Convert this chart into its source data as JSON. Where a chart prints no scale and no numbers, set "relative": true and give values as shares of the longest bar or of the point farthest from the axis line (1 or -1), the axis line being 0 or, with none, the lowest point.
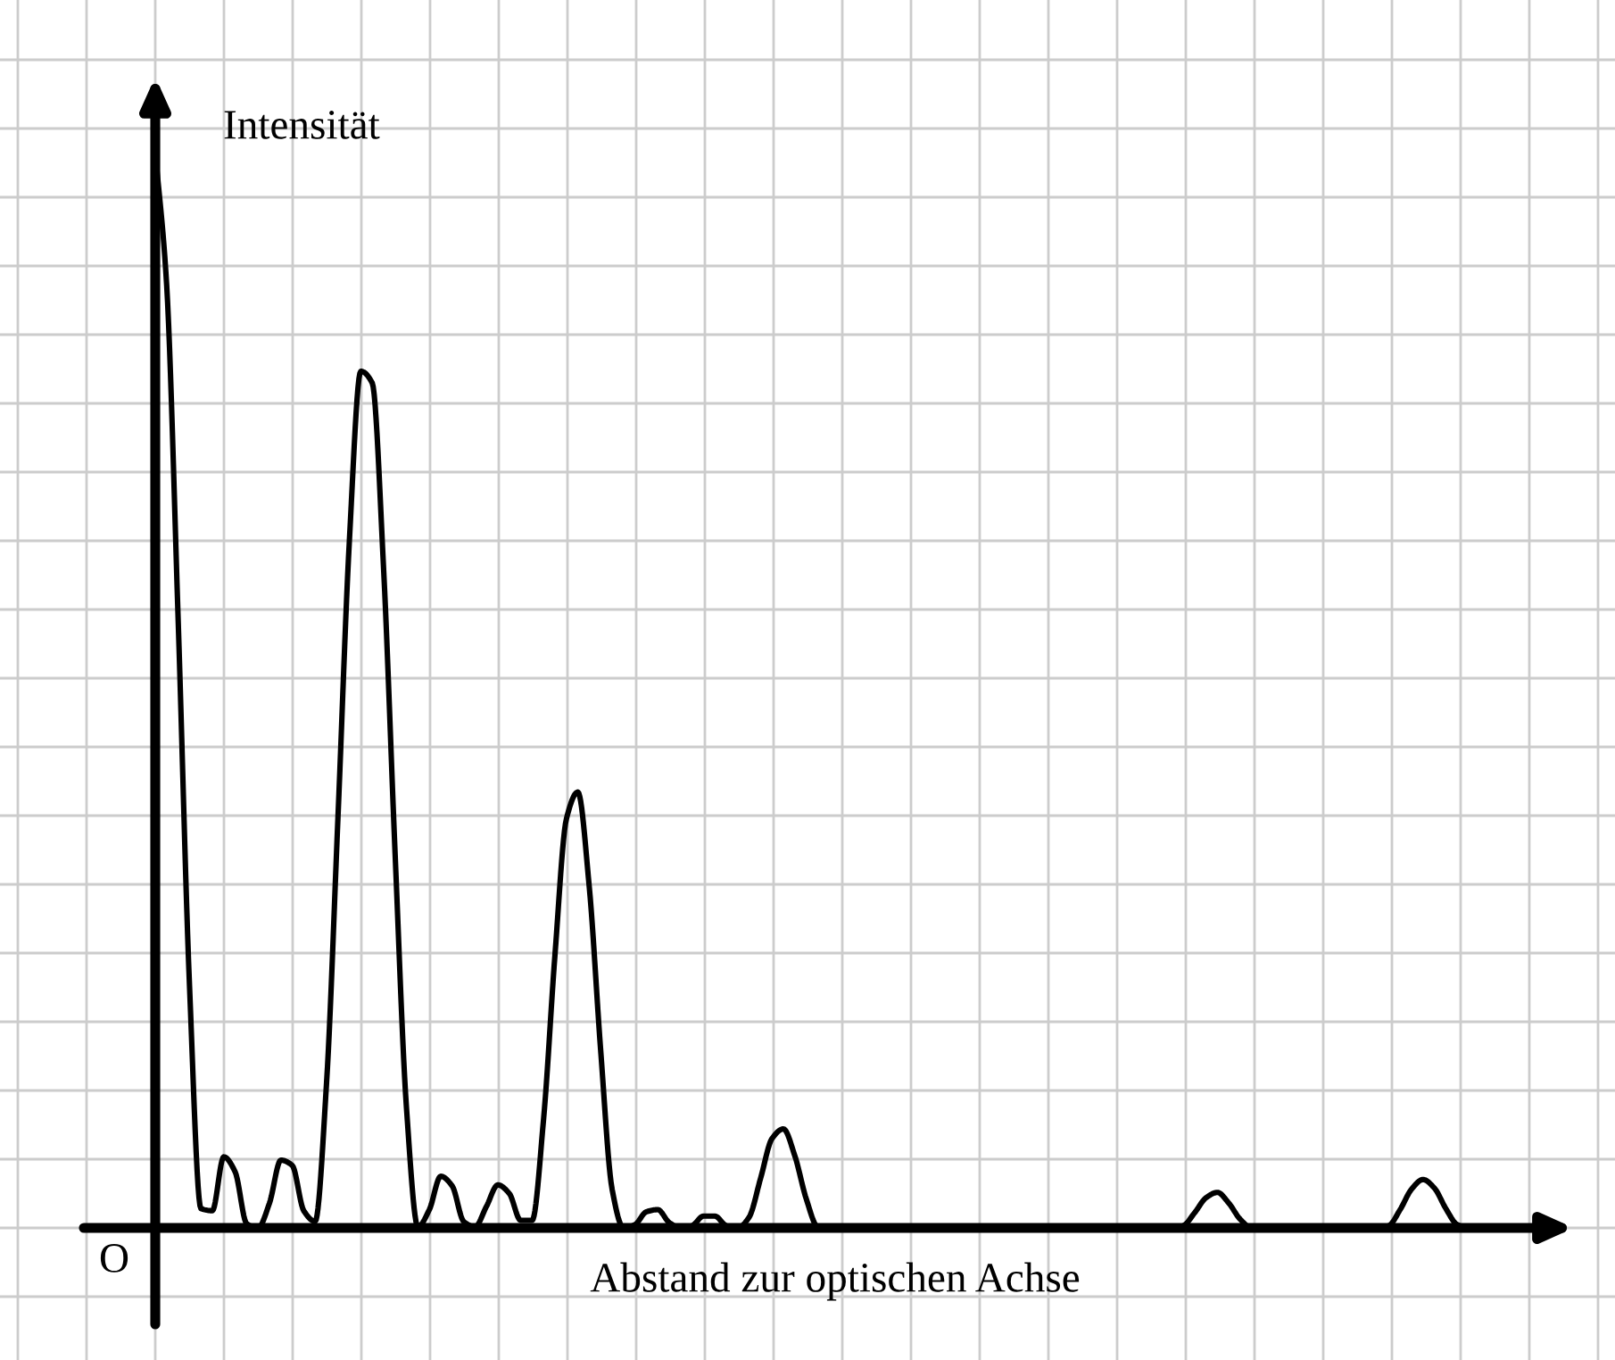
{
  "chart_data": {
    "type": "line",
    "relative": true,
    "xlabel": "Abstand zur optischen Achse",
    "ylabel": "Intensität",
    "annotations": [
      "O"
    ],
    "grid": true,
    "marker": "none",
    "line_style": "solid",
    "categories": [
      null,
      null,
      null,
      null,
      null,
      null,
      null,
      null,
      null,
      null,
      null,
      null,
      null,
      null,
      null,
      null,
      null,
      null,
      null,
      null,
      null,
      null,
      null,
      null,
      null,
      null,
      null,
      null,
      null,
      null,
      null,
      null,
      null,
      null,
      null,
      null,
      null,
      null,
      null,
      null,
      null,
      null,
      null,
      null,
      null,
      null,
      null,
      null,
      null,
      null,
      null,
      null,
      null,
      null,
      null,
      null,
      null,
      null,
      null,
      null,
      null,
      null,
      null,
      null,
      null,
      null,
      null,
      null,
      null,
      null,
      null,
      null,
      null,
      null,
      null,
      null,
      null,
      null,
      null,
      null,
      null,
      null,
      null,
      null,
      null,
      null,
      null,
      null,
      null,
      null,
      null,
      null,
      null,
      null,
      null,
      null,
      null,
      null,
      null,
      null,
      null,
      null,
      null,
      null,
      null,
      null,
      null,
      null,
      null,
      null,
      null,
      null,
      null,
      null,
      null,
      null,
      null,
      null,
      null,
      null
    ],
    "series": [
      {
        "color": "#000000",
        "values": [
          1.0,
          0.876,
          0.567,
          0.225,
          0.018,
          0.016,
          0.066,
          0.052,
          0.004,
          0,
          0.023,
          0.063,
          0.058,
          0.016,
          0.006,
          0.135,
          0.382,
          0.639,
          0.796,
          0.785,
          0.611,
          0.348,
          0.111,
          0.001,
          0.017,
          0.048,
          0.039,
          0.006,
          0.001,
          0.02,
          0.04,
          0.032,
          0.007,
          0.007,
          0.101,
          0.254,
          0.38,
          0.405,
          0.317,
          0.165,
          0.036,
          0,
          0.003,
          0.015,
          0.017,
          0.005,
          0,
          0.002,
          0.011,
          0.011,
          0.002,
          0,
          0.01,
          0.046,
          0.083,
          0.092,
          0.067,
          0.027,
          0.001,
          0,
          0,
          0,
          0,
          0,
          0,
          0,
          0,
          0,
          0,
          0,
          0,
          0,
          0,
          0,
          0,
          0,
          0,
          0,
          0,
          0,
          0,
          0,
          0,
          0,
          0,
          0,
          0,
          0,
          0,
          0,
          0.002,
          0.014,
          0.028,
          0.033,
          0.023,
          0.008,
          0,
          0,
          0,
          0,
          0,
          0,
          0,
          0,
          0,
          0,
          0,
          0,
          0.002,
          0.017,
          0.036,
          0.045,
          0.037,
          0.018,
          0.003,
          0,
          0,
          0,
          0,
          0
        ]
      }
    ]
  }
}
